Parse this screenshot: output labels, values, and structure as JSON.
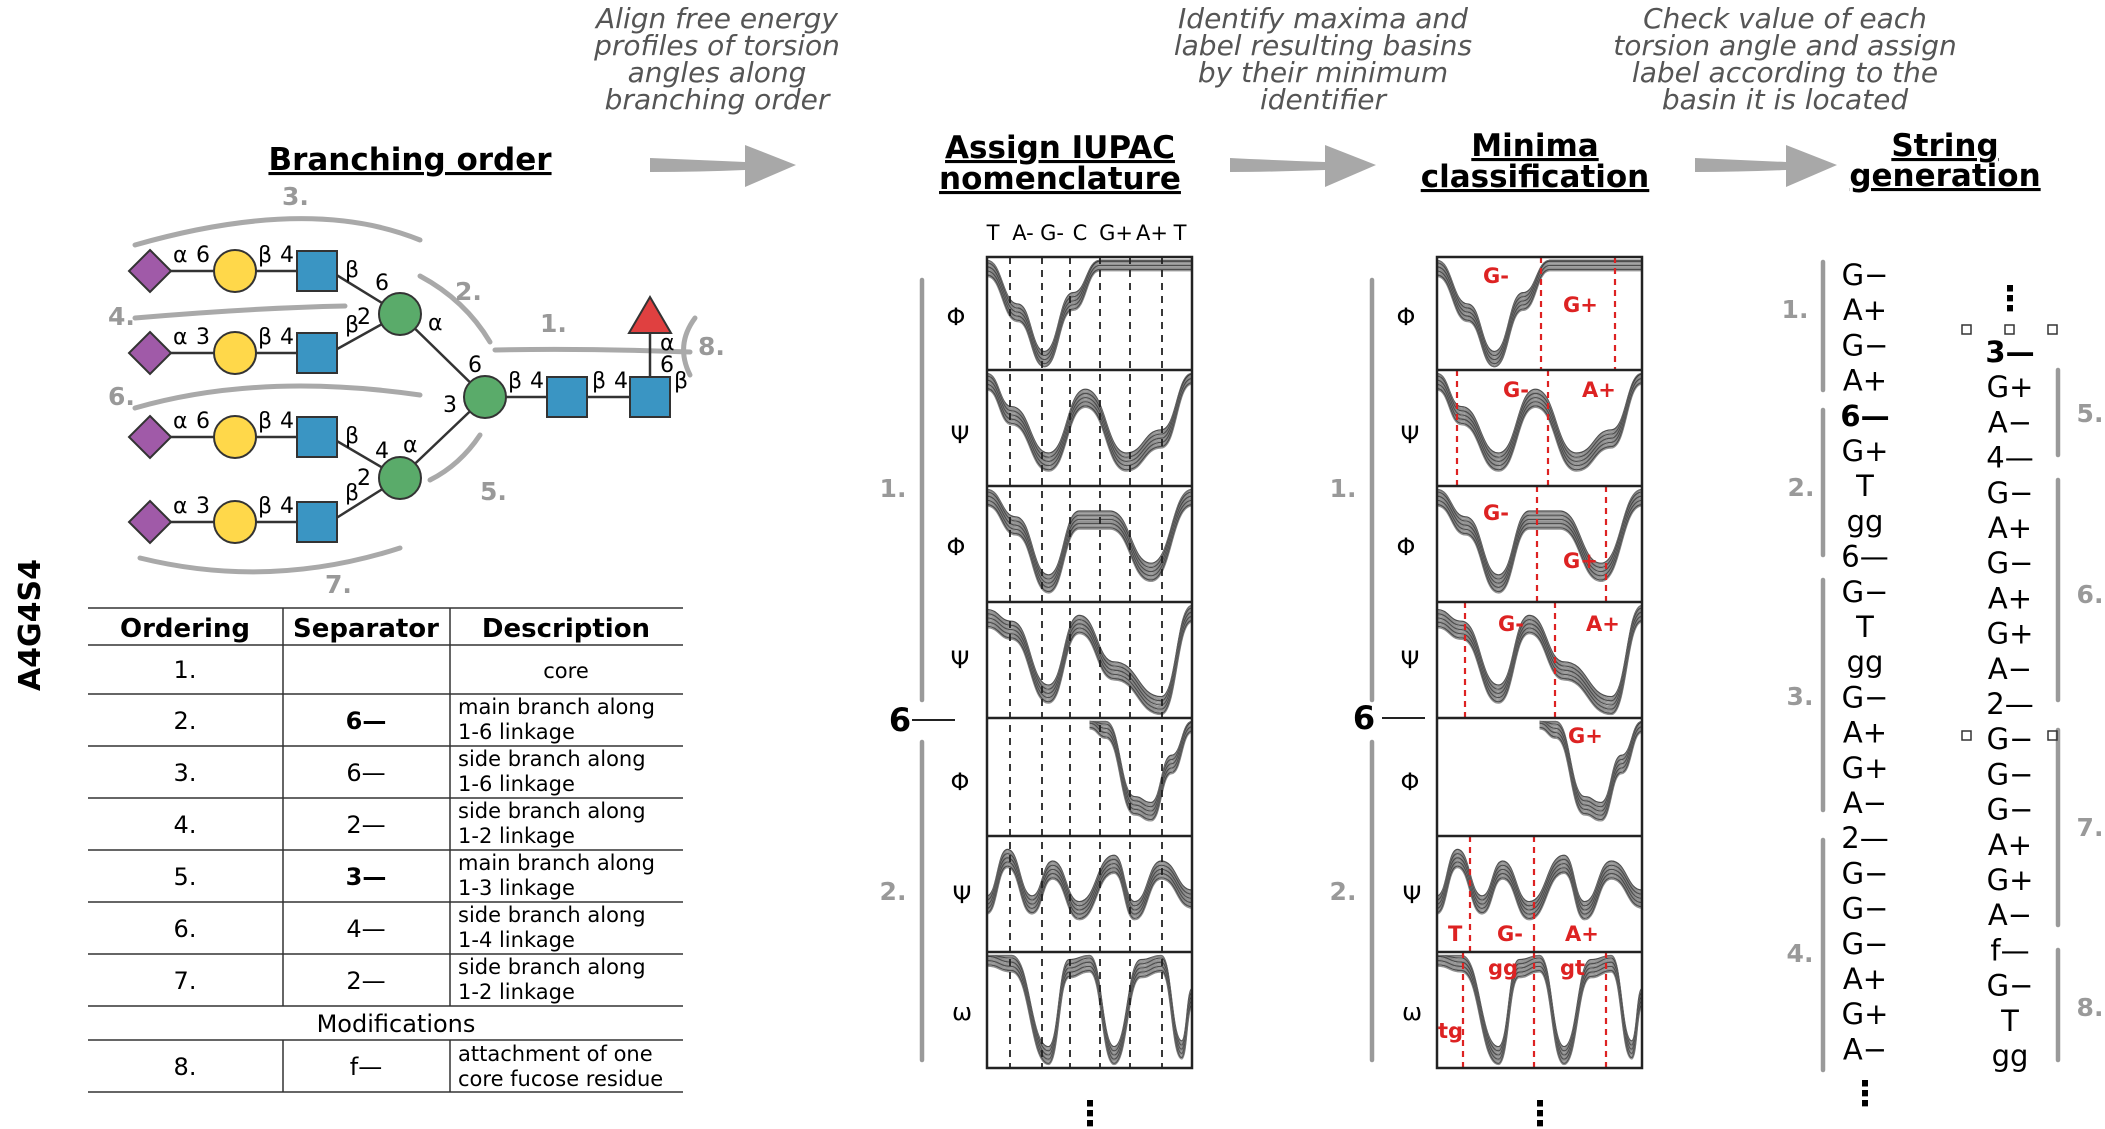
{
  "sample_label": "A4G4S4",
  "steps": [
    {
      "lines": [
        "Align free energy",
        "profiles of torsion",
        "angles along",
        "branching order"
      ]
    },
    {
      "lines": [
        "Identify maxima and",
        "label resulting basins",
        "by their minimum",
        "identifier"
      ]
    },
    {
      "lines": [
        "Check value of each",
        "torsion angle and assign",
        "label according to the",
        "basin it is located"
      ]
    }
  ],
  "headers": {
    "branching": "Branching order",
    "iupac": [
      "Assign IUPAC",
      "nomenclature"
    ],
    "minima": [
      "Minima",
      "classification"
    ],
    "string": [
      "String",
      "generation"
    ]
  },
  "glycan": {
    "linkages": [
      {
        "anomer": "α",
        "pos": "6"
      },
      {
        "anomer": "β",
        "pos": "4"
      },
      {
        "anomer": "β",
        "pos": ""
      },
      {
        "anomer": "α",
        "pos": "3"
      },
      {
        "anomer": "β",
        "pos": "4"
      },
      {
        "anomer": "β",
        "pos": ""
      },
      {
        "anomer": "α",
        "pos": "6"
      },
      {
        "anomer": "β",
        "pos": "4"
      },
      {
        "anomer": "β",
        "pos": ""
      },
      {
        "anomer": "α",
        "pos": "3"
      },
      {
        "anomer": "β",
        "pos": "4"
      },
      {
        "anomer": "β",
        "pos": ""
      }
    ],
    "positions": [
      "6",
      "2",
      "α",
      "6",
      "3",
      "4",
      "2",
      "α",
      "β",
      "4",
      "β",
      "4",
      "α",
      "6",
      "β"
    ],
    "branch_labels": [
      "1.",
      "2.",
      "3.",
      "4.",
      "5.",
      "6.",
      "7.",
      "8."
    ]
  },
  "table": {
    "headers": [
      "Ordering",
      "Separator",
      "Description"
    ],
    "rows": [
      {
        "order": "1.",
        "sep": "",
        "desc": [
          "core"
        ]
      },
      {
        "order": "2.",
        "sep": "6—",
        "desc": [
          "main branch along",
          "1-6 linkage"
        ]
      },
      {
        "order": "3.",
        "sep": "6—",
        "desc": [
          "side branch along",
          "1-6 linkage"
        ]
      },
      {
        "order": "4.",
        "sep": "2—",
        "desc": [
          "side branch along",
          "1-2 linkage"
        ]
      },
      {
        "order": "5.",
        "sep": "3—",
        "desc": [
          "main branch along",
          "1-3 linkage"
        ]
      },
      {
        "order": "6.",
        "sep": "4—",
        "desc": [
          "side branch along",
          "1-4 linkage"
        ]
      },
      {
        "order": "7.",
        "sep": "2—",
        "desc": [
          "side branch along",
          "1-2 linkage"
        ]
      }
    ],
    "modifications_label": "Modifications",
    "mod_rows": [
      {
        "order": "8.",
        "sep": "f—",
        "desc": [
          "attachment of one",
          "core fucose residue"
        ]
      }
    ]
  },
  "iupac_axis": [
    "T",
    "A-",
    "G-",
    "C",
    "G+",
    "A+",
    "T"
  ],
  "panel_rows": [
    "Φ",
    "Ψ",
    "Φ",
    "Ψ",
    "Φ",
    "Ψ",
    "ω"
  ],
  "group_labels": [
    "1.",
    "2."
  ],
  "separator_6": "6",
  "ellipsis": "⋮",
  "minima_labels": [
    [
      "G-",
      "G+"
    ],
    [
      "G-",
      "A+"
    ],
    [
      "G-",
      "G+"
    ],
    [
      "G-",
      "A+"
    ],
    [
      "G+"
    ],
    [
      "T",
      "G-",
      "A+"
    ],
    [
      "tg",
      "gg",
      "gt"
    ]
  ],
  "string_col1": [
    "G−",
    "A+",
    "G−",
    "A+",
    "6—",
    "G+",
    "T",
    "gg",
    "6—",
    "G−",
    "T",
    "gg",
    "G−",
    "A+",
    "G+",
    "A−",
    "2—",
    "G−",
    "G−",
    "G−",
    "A+",
    "G+",
    "A−"
  ],
  "string_col1_labels": [
    "1.",
    "2.",
    "3.",
    "4."
  ],
  "string_col2": [
    "3—",
    "G+",
    "A−",
    "4—",
    "G−",
    "A+",
    "G−",
    "A+",
    "G+",
    "A−",
    "2—",
    "G−",
    "G−",
    "G−",
    "A+",
    "G+",
    "A−",
    "f—",
    "G−",
    "T",
    "gg"
  ],
  "string_col2_labels": [
    "5.",
    "6.",
    "7.",
    "8."
  ],
  "colors": {
    "neu5ac": "#a05aa8",
    "gal": "#ffd84a",
    "glcnac": "#3a95c3",
    "man": "#5aab6a",
    "fuc": "#e04040",
    "basin_line": "#dd2222",
    "profile": "#444444",
    "bracket": "#9a9a9a"
  }
}
